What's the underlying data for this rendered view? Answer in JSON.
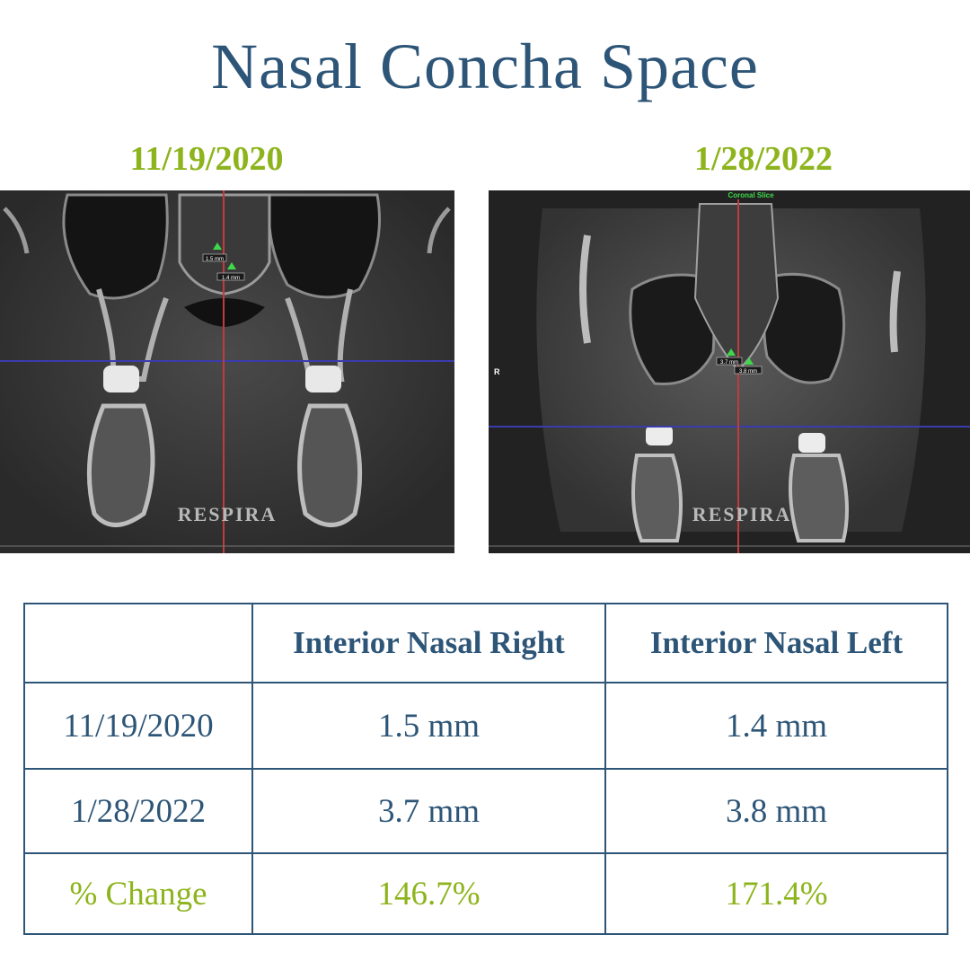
{
  "title": "Nasal Concha Space",
  "scans": [
    {
      "date": "11/19/2020",
      "watermark": "RESPIRA",
      "measure_right": "1.5 mm",
      "measure_left": "1.4 mm"
    },
    {
      "date": "1/28/2022",
      "watermark": "RESPIRA",
      "slice_label": "Coronal Slice",
      "side_marker": "R",
      "measure_right": "3.7 mm",
      "measure_left": "3.8 mm"
    }
  ],
  "table": {
    "headers": [
      "",
      "Interior Nasal Right",
      "Interior Nasal Left"
    ],
    "rows": [
      {
        "label": "11/19/2020",
        "right": "1.5 mm",
        "left": "1.4 mm"
      },
      {
        "label": "1/28/2022",
        "right": "3.7 mm",
        "left": "3.8 mm"
      },
      {
        "label": "% Change",
        "right": "146.7%",
        "left": "171.4%"
      }
    ]
  },
  "colors": {
    "title": "#2d5577",
    "accent_green": "#8db41c",
    "table_border": "#2d5577"
  }
}
